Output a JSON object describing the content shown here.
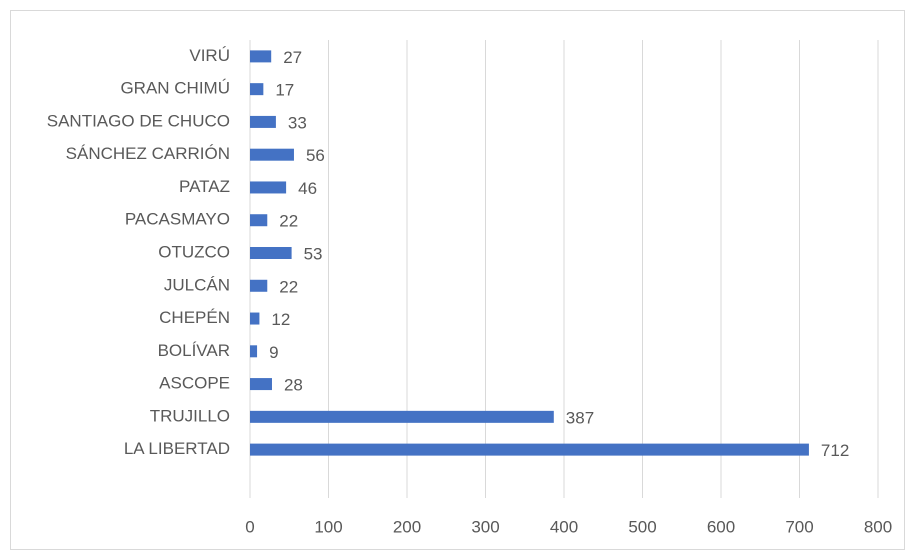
{
  "chart_data": {
    "type": "bar",
    "orientation": "horizontal",
    "categories": [
      "LA LIBERTAD",
      "TRUJILLO",
      "ASCOPE",
      "BOLÍVAR",
      "CHEPÉN",
      "JULCÁN",
      "OTUZCO",
      "PACASMAYO",
      "PATAZ",
      "SÁNCHEZ CARRIÓN",
      "SANTIAGO DE CHUCO",
      "GRAN CHIMÚ",
      "VIRÚ"
    ],
    "values": [
      712,
      387,
      28,
      9,
      12,
      22,
      53,
      22,
      46,
      56,
      33,
      17,
      27
    ],
    "color": "#4472c4",
    "xlim": [
      0,
      800
    ],
    "xticks": [
      0,
      100,
      200,
      300,
      400,
      500,
      600,
      700,
      800
    ],
    "grid": true
  }
}
